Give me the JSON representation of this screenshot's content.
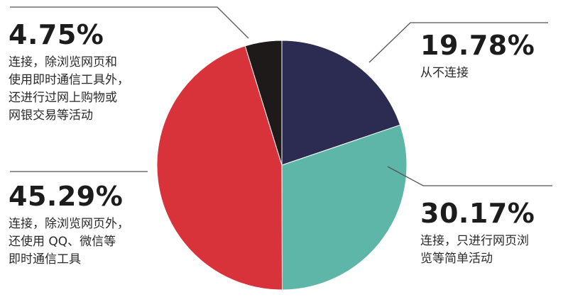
{
  "chart_data": {
    "type": "pie",
    "title": "",
    "slices": [
      {
        "value": 19.78,
        "percent_label": "19.78%",
        "description": "从不连接",
        "color": "#2c2c52"
      },
      {
        "value": 30.17,
        "percent_label": "30.17%",
        "description": "连接，只进行网页浏\n览等简单活动",
        "color": "#5db6a8"
      },
      {
        "value": 45.29,
        "percent_label": "45.29%",
        "description": "连接，除浏览网页外，\n还使用 QQ、微信等\n即时通信工具",
        "color": "#d8323a"
      },
      {
        "value": 4.75,
        "percent_label": "4.75%",
        "description": "连接，除浏览网页和\n使用即时通信工具外，\n还进行过网上购物或\n网银交易等活动",
        "color": "#1e1a1a"
      }
    ],
    "start_angle_deg": 0,
    "direction": "clockwise",
    "legend": "none"
  }
}
